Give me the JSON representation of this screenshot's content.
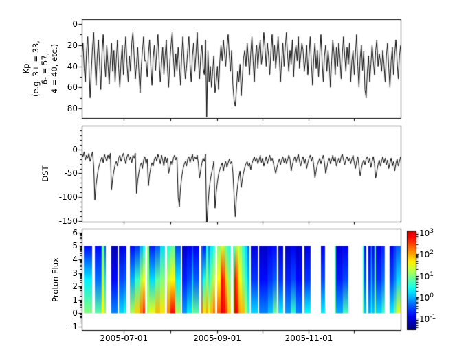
{
  "panels": {
    "kp": {
      "ylabel_lines": {
        "l1": "Kp",
        "l2": "(e.g. 3+ = 33,",
        "l3": "6- = 57,",
        "l4": "4 = 40, etc.)"
      },
      "ylim": [
        -4.5,
        89
      ],
      "yticks": [
        {
          "v": 0,
          "label": "0"
        },
        {
          "v": 20,
          "label": "20"
        },
        {
          "v": 40,
          "label": "40"
        },
        {
          "v": 60,
          "label": "60"
        },
        {
          "v": 80,
          "label": "80"
        }
      ],
      "yticks_minor": [
        10,
        30,
        50,
        70
      ]
    },
    "dst": {
      "ylabel": "DST",
      "ylim": [
        50,
        -151.5
      ],
      "yticks": [
        {
          "v": 0,
          "label": "0"
        },
        {
          "v": -50,
          "label": "-50"
        },
        {
          "v": -100,
          "label": "-100"
        },
        {
          "v": -150,
          "label": "-150"
        }
      ],
      "yticks_minor": [
        40,
        30,
        20,
        10,
        -10,
        -20,
        -30,
        -40,
        -60,
        -70,
        -80,
        -90,
        -110,
        -120,
        -130,
        -140
      ]
    },
    "proton": {
      "ylabel": "Proton Flux",
      "ylim": [
        6.3,
        -1.25
      ],
      "yticks": [
        {
          "v": 6,
          "label": "6"
        },
        {
          "v": 5,
          "label": "5"
        },
        {
          "v": 4,
          "label": "4"
        },
        {
          "v": 3,
          "label": "3"
        },
        {
          "v": 2,
          "label": "2"
        },
        {
          "v": 1,
          "label": "1"
        },
        {
          "v": 0,
          "label": "0"
        },
        {
          "v": -1,
          "label": "-1"
        }
      ],
      "minor_decades": [
        -1,
        0,
        1,
        2,
        3,
        4,
        5
      ]
    }
  },
  "axis_x": {
    "lim_days": [
      0,
      212
    ],
    "major": [
      {
        "day": 28,
        "label": "2005-07-01"
      },
      {
        "day": 90,
        "label": "2005-09-01"
      },
      {
        "day": 151,
        "label": "2005-11-01"
      }
    ],
    "minor_days": [
      59,
      120,
      181
    ]
  },
  "colorbar": {
    "vlim": [
      3.1,
      -1.5
    ],
    "tick_base": "10",
    "ticks": [
      {
        "v": 3,
        "exp": "3"
      },
      {
        "v": 2,
        "exp": "2"
      },
      {
        "v": 1,
        "exp": "1"
      },
      {
        "v": 0,
        "exp": "0"
      },
      {
        "v": -1,
        "exp": "-1"
      }
    ],
    "minor_decades": [
      -2,
      -1,
      0,
      1,
      2
    ],
    "log_minor_offsets": [
      0.301,
      0.477,
      0.602,
      0.699,
      0.778,
      0.845,
      0.903,
      0.954
    ]
  },
  "chart_data": [
    {
      "type": "line",
      "name": "Kp",
      "x_range_days": [
        0,
        212
      ],
      "values": [
        30,
        18,
        42,
        55,
        25,
        12,
        38,
        70,
        45,
        22,
        8,
        35,
        58,
        30,
        15,
        40,
        62,
        28,
        10,
        33,
        50,
        20,
        38,
        57,
        35,
        18,
        45,
        25,
        55,
        33,
        15,
        42,
        60,
        35,
        20,
        48,
        28,
        12,
        38,
        55,
        30,
        45,
        18,
        8,
        30,
        52,
        38,
        22,
        45,
        65,
        40,
        25,
        12,
        35,
        35,
        50,
        28,
        15,
        40,
        58,
        32,
        20,
        44,
        26,
        10,
        35,
        55,
        38,
        22,
        48,
        30,
        15,
        42,
        60,
        35,
        20,
        8,
        32,
        50,
        28,
        45,
        22,
        38,
        58,
        30,
        12,
        35,
        52,
        42,
        25,
        12,
        38,
        55,
        30,
        18,
        45,
        28,
        8,
        35,
        52,
        30,
        20,
        42,
        48,
        15,
        88,
        25,
        55,
        40,
        60,
        45,
        30,
        65,
        55,
        40,
        62,
        35,
        20,
        35,
        15,
        28,
        40,
        22,
        10,
        30,
        45,
        25,
        58,
        72,
        78,
        62,
        45,
        55,
        38,
        68,
        50,
        32,
        25,
        40,
        18,
        32,
        48,
        28,
        12,
        35,
        55,
        30,
        20,
        42,
        25,
        15,
        38,
        28,
        8,
        22,
        40,
        18,
        30,
        48,
        25,
        10,
        35,
        20,
        42,
        28,
        12,
        32,
        55,
        35,
        18,
        40,
        22,
        8,
        30,
        45,
        25,
        38,
        15,
        50,
        28,
        20,
        35,
        12,
        42,
        30,
        18,
        25,
        45,
        35,
        20,
        48,
        30,
        12,
        38,
        58,
        32,
        18,
        42,
        25,
        50,
        28,
        10,
        35,
        55,
        30,
        20,
        45,
        25,
        38,
        60,
        35,
        15,
        28,
        48,
        22,
        40,
        18,
        32,
        52,
        28,
        12,
        30,
        45,
        22,
        38,
        18,
        55,
        35,
        25,
        48,
        28,
        10,
        40,
        60,
        32,
        20,
        44,
        26,
        62,
        70,
        45,
        30,
        55,
        38,
        20,
        35,
        48,
        25,
        15,
        40,
        28,
        35,
        45,
        25,
        38,
        55,
        30,
        18,
        42,
        60,
        35,
        22,
        48,
        28,
        15,
        35,
        52,
        30,
        20
      ]
    },
    {
      "type": "line",
      "name": "DST",
      "x_range_days": [
        0,
        212
      ],
      "values": [
        -8,
        -15,
        -5,
        -22,
        -12,
        -18,
        -8,
        -25,
        -15,
        -5,
        -35,
        -106,
        -75,
        -55,
        -40,
        -30,
        -22,
        -15,
        -28,
        -10,
        -18,
        -25,
        -12,
        -20,
        -8,
        -85,
        -60,
        -45,
        -32,
        -25,
        -35,
        -18,
        -12,
        -25,
        -15,
        -8,
        -20,
        -30,
        -15,
        -10,
        -22,
        -15,
        -28,
        -12,
        -18,
        -8,
        -92,
        -65,
        -48,
        -35,
        -28,
        -40,
        -22,
        -15,
        -30,
        -20,
        -76,
        -52,
        -38,
        -28,
        -35,
        -20,
        -15,
        -25,
        -10,
        -18,
        -30,
        -12,
        -22,
        -35,
        -15,
        -28,
        -18,
        -50,
        -38,
        -25,
        -32,
        -18,
        -12,
        -22,
        -15,
        -100,
        -120,
        -80,
        -58,
        -42,
        -32,
        -25,
        -35,
        -20,
        -15,
        -28,
        -18,
        -10,
        -25,
        -15,
        -20,
        -12,
        -30,
        -60,
        -42,
        -28,
        -18,
        -25,
        -10,
        -165,
        -120,
        -85,
        -65,
        -50,
        -40,
        -25,
        -123,
        -90,
        -68,
        -52,
        -42,
        -35,
        -28,
        -45,
        -32,
        -25,
        -38,
        -28,
        -20,
        -30,
        -25,
        -48,
        -95,
        -141,
        -100,
        -75,
        -58,
        -45,
        -80,
        -62,
        -48,
        -38,
        -30,
        -25,
        -35,
        -28,
        -42,
        -30,
        -22,
        -15,
        -25,
        -18,
        -30,
        -22,
        -12,
        -28,
        -18,
        -35,
        -25,
        -15,
        -30,
        -20,
        -12,
        -25,
        -18,
        -28,
        -40,
        -50,
        -38,
        -28,
        -20,
        -32,
        -22,
        -15,
        -28,
        -18,
        -30,
        -22,
        -12,
        -20,
        -45,
        -32,
        -22,
        -15,
        -28,
        -18,
        -10,
        -25,
        -35,
        -22,
        -15,
        -30,
        -20,
        -40,
        -28,
        -18,
        -12,
        -25,
        -15,
        -35,
        -60,
        -45,
        -32,
        -25,
        -18,
        -30,
        -20,
        -12,
        -28,
        -50,
        -38,
        -25,
        -18,
        -30,
        -22,
        -12,
        -25,
        -15,
        -35,
        -25,
        -18,
        -28,
        -15,
        -10,
        -22,
        -32,
        -20,
        -15,
        -25,
        -18,
        -30,
        -20,
        -12,
        -28,
        -40,
        -25,
        -15,
        -35,
        -55,
        -40,
        -28,
        -22,
        -32,
        -20,
        -15,
        -28,
        -18,
        -38,
        -25,
        -15,
        -30,
        -60,
        -45,
        -32,
        -22,
        -35,
        -25,
        -15,
        -28,
        -18,
        -32,
        -22,
        -40,
        -28,
        -18,
        -35,
        -25,
        -45,
        -30,
        -20,
        -35,
        -25,
        -15
      ]
    },
    {
      "type": "heatmap",
      "name": "Proton Flux",
      "y_extent": [
        0,
        5
      ],
      "value_scale": "log10_flux",
      "segments": [
        [
          1.4,
          6.9,
          -0.8,
          0.3,
          1.0
        ],
        [
          8.7,
          13.2,
          -0.8,
          -0.3,
          0.8
        ],
        [
          13.2,
          15.1,
          0.8,
          1.2,
          1.6
        ],
        [
          15.1,
          16.0,
          -0.5,
          0.2,
          1.0
        ],
        [
          19.6,
          23.8,
          -1.2,
          -0.8,
          -0.2
        ],
        [
          24.7,
          27.9,
          -1.0,
          -0.5,
          0.2
        ],
        [
          27.9,
          29.7,
          -0.9,
          -0.4,
          0.5
        ],
        [
          32.0,
          35.2,
          -0.8,
          0.0,
          1.2
        ],
        [
          35.2,
          38.4,
          -0.6,
          0.6,
          1.8
        ],
        [
          38.4,
          40.7,
          0.0,
          1.2,
          2.2
        ],
        [
          40.7,
          42.0,
          0.3,
          1.5,
          2.7
        ],
        [
          43.4,
          44.8,
          1.0,
          1.0,
          1.2
        ],
        [
          44.8,
          48.9,
          -0.7,
          0.2,
          1.5
        ],
        [
          48.9,
          52.1,
          -0.4,
          0.8,
          1.9
        ],
        [
          52.1,
          55.3,
          0.2,
          1.0,
          1.7
        ],
        [
          56.6,
          58.9,
          0.5,
          1.3,
          2.2
        ],
        [
          58.9,
          62.1,
          0.8,
          1.6,
          2.8
        ],
        [
          62.1,
          65.8,
          -0.5,
          0.3,
          1.2
        ],
        [
          66.7,
          69.9,
          -1.1,
          -0.7,
          -0.1
        ],
        [
          69.9,
          73.1,
          -0.9,
          -0.5,
          0.3
        ],
        [
          73.1,
          74.0,
          -0.6,
          0.2,
          1.1
        ],
        [
          74.0,
          78.1,
          -0.9,
          -0.4,
          0.8
        ],
        [
          79.5,
          80.4,
          -0.5,
          0.0,
          2.3
        ],
        [
          80.4,
          82.7,
          -0.7,
          0.5,
          1.7
        ],
        [
          82.7,
          84.0,
          0.4,
          1.1,
          2.0
        ],
        [
          84.0,
          85.4,
          -0.2,
          0.4,
          1.5
        ],
        [
          85.4,
          87.3,
          0.3,
          1.0,
          1.9
        ],
        [
          87.3,
          88.6,
          0.5,
          1.3,
          2.3
        ],
        [
          90.0,
          92.3,
          1.0,
          1.6,
          2.4
        ],
        [
          92.3,
          94.1,
          1.4,
          2.7,
          2.9
        ],
        [
          94.1,
          95.5,
          1.2,
          2.5,
          2.8
        ],
        [
          95.5,
          96.9,
          0.8,
          1.8,
          2.5
        ],
        [
          96.9,
          99.1,
          0.5,
          1.0,
          1.8
        ],
        [
          100.5,
          101.4,
          0.6,
          0.9,
          1.3
        ],
        [
          101.4,
          102.8,
          1.0,
          2.7,
          2.9
        ],
        [
          102.8,
          103.7,
          1.2,
          2.4,
          2.9
        ],
        [
          103.7,
          104.6,
          1.5,
          1.9,
          2.4
        ],
        [
          104.6,
          106.4,
          1.1,
          1.5,
          2.0
        ],
        [
          106.4,
          108.3,
          0.6,
          1.0,
          1.9
        ],
        [
          108.3,
          110.1,
          0.2,
          0.6,
          1.2
        ],
        [
          110.1,
          111.5,
          -0.3,
          0.1,
          0.6
        ],
        [
          112.4,
          117.0,
          -1.0,
          -0.6,
          0.2
        ],
        [
          117.9,
          123.8,
          -1.1,
          -0.8,
          -0.2
        ],
        [
          123.8,
          127.0,
          -0.9,
          -0.6,
          0.1
        ],
        [
          127.0,
          129.7,
          -0.8,
          -0.4,
          0.9
        ],
        [
          130.7,
          133.9,
          -1.0,
          -0.6,
          0.3
        ],
        [
          135.2,
          138.9,
          -1.1,
          -0.7,
          -0.1
        ],
        [
          138.9,
          142.1,
          -0.9,
          -0.5,
          0.6
        ],
        [
          142.1,
          146.6,
          -1.1,
          -0.8,
          -0.2
        ],
        [
          148.0,
          152.1,
          -1.0,
          -0.6,
          0.4
        ],
        [
          159.0,
          161.7,
          -0.9,
          -0.5,
          0.3
        ],
        [
          168.1,
          169.0,
          0.7,
          0.7,
          0.9
        ],
        [
          169.0,
          173.6,
          -1.0,
          -0.7,
          0.0
        ],
        [
          173.6,
          177.2,
          -0.9,
          -0.5,
          0.7
        ],
        [
          186.8,
          187.8,
          0.5,
          0.6,
          0.9
        ],
        [
          187.8,
          189.1,
          -0.8,
          -0.5,
          0.1
        ],
        [
          190.5,
          192.3,
          -0.9,
          -0.6,
          0.0
        ],
        [
          192.3,
          193.2,
          -0.3,
          0.0,
          0.4
        ],
        [
          193.2,
          194.6,
          -0.9,
          -0.5,
          0.1
        ],
        [
          194.6,
          195.5,
          0.8,
          0.9,
          1.1
        ],
        [
          195.5,
          199.6,
          -0.9,
          -0.6,
          0.2
        ],
        [
          199.6,
          201.4,
          -0.7,
          -0.3,
          0.7
        ],
        [
          204.6,
          207.4,
          -0.9,
          -0.5,
          0.3
        ],
        [
          207.4,
          209.2,
          -0.6,
          -0.2,
          0.9
        ],
        [
          209.2,
          211.9,
          -0.4,
          0.2,
          1.5
        ]
      ]
    }
  ]
}
